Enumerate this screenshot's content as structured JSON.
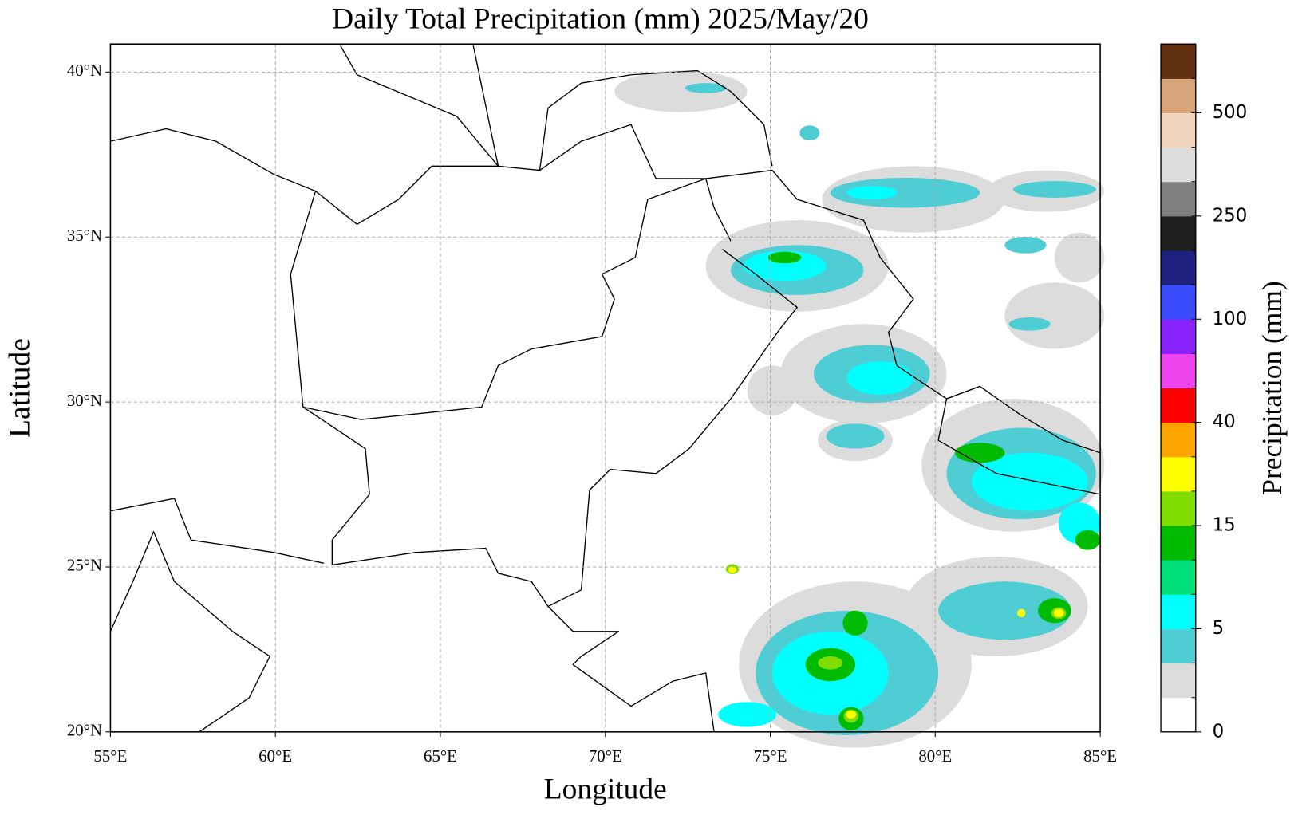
{
  "title": "Daily Total Precipitation (mm)  2025/May/20",
  "x_label": "Longitude",
  "y_label": "Latitude",
  "xlim": [
    55,
    85
  ],
  "ylim": [
    20,
    40.85
  ],
  "xticks": [
    {
      "value": 55,
      "label": "55°E"
    },
    {
      "value": 60,
      "label": "60°E"
    },
    {
      "value": 65,
      "label": "65°E"
    },
    {
      "value": 70,
      "label": "70°E"
    },
    {
      "value": 75,
      "label": "75°E"
    },
    {
      "value": 80,
      "label": "80°E"
    },
    {
      "value": 85,
      "label": "85°E"
    }
  ],
  "yticks": [
    {
      "value": 20,
      "label": "20°N"
    },
    {
      "value": 25,
      "label": "25°N"
    },
    {
      "value": 30,
      "label": "30°N"
    },
    {
      "value": 35,
      "label": "35°N"
    },
    {
      "value": 40,
      "label": "40°N"
    }
  ],
  "grid": true,
  "colorbar": {
    "label": "Precipitation (mm)",
    "ticks": [
      0,
      5,
      15,
      40,
      100,
      250,
      500
    ],
    "colors": [
      "#ffffff",
      "#dcdcdc",
      "#4fcdd4",
      "#00ffff",
      "#00e07a",
      "#00bb00",
      "#80dd00",
      "#ffff00",
      "#ffa500",
      "#ff0000",
      "#ee44ee",
      "#8822ff",
      "#3b4cff",
      "#1e2080",
      "#202020",
      "#808080",
      "#dddddd",
      "#f0d5c0",
      "#d8a47a",
      "#603010"
    ]
  }
}
